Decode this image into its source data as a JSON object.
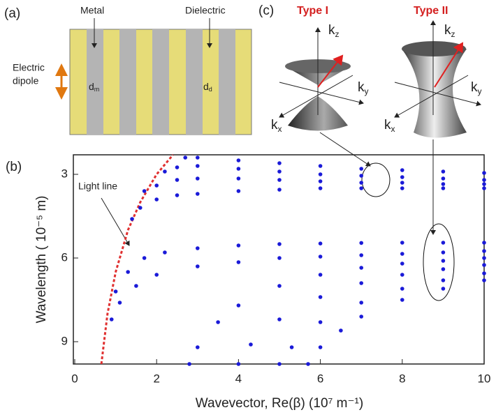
{
  "panel_a": {
    "label": "(a)",
    "metal": "Metal",
    "dielectric": "Dielectric",
    "dipole": [
      "Electric",
      "dipole"
    ],
    "d_m": {
      "symbol": "d",
      "sub": "m"
    },
    "d_d": {
      "symbol": "d",
      "sub": "d"
    }
  },
  "panel_c": {
    "label": "(c)",
    "type_1": "Type I",
    "type_2": "Type II",
    "kz": {
      "symbol": "k",
      "sub": "z"
    },
    "ky": {
      "symbol": "k",
      "sub": "y"
    },
    "kx": {
      "symbol": "k",
      "sub": "x"
    }
  },
  "chart_data": {
    "type": "scatter",
    "label": "(b)",
    "x_label": "Wavevector, Re(β) (10⁷ m⁻¹)",
    "y_label": "Wavelength ( 10⁻⁵ m)",
    "annotation": "Light line",
    "xlim": [
      0,
      10
    ],
    "ylim": [
      9.8,
      2.3
    ],
    "xticks": [
      0,
      2,
      4,
      6,
      8,
      10
    ],
    "yticks": [
      3,
      6,
      9
    ],
    "series": [
      {
        "color": "#e03030",
        "style": "dashed",
        "x": [
          0.65,
          0.8,
          1.0,
          1.3,
          1.6,
          2.0,
          2.4
        ],
        "values": [
          9.8,
          8.0,
          6.5,
          5.0,
          4.0,
          3.0,
          2.3
        ]
      },
      {
        "color": "#1a1ad8",
        "x": [
          2.7,
          3,
          4,
          5,
          6,
          7,
          8,
          9,
          10
        ],
        "values": [
          2.4,
          2.4,
          2.5,
          2.6,
          2.7,
          2.8,
          2.85,
          2.9,
          2.95
        ]
      },
      {
        "color": "#1a1ad8",
        "x": [
          2.2,
          2.5,
          3,
          4,
          5,
          6,
          7,
          8,
          9,
          10
        ],
        "values": [
          2.9,
          2.75,
          2.7,
          2.8,
          2.9,
          3.0,
          3.05,
          3.1,
          3.15,
          3.2
        ]
      },
      {
        "color": "#1a1ad8",
        "x": [
          1.7,
          2,
          2.5,
          3,
          4,
          5,
          6,
          7,
          8,
          9,
          10
        ],
        "values": [
          3.6,
          3.4,
          3.2,
          3.15,
          3.15,
          3.2,
          3.25,
          3.3,
          3.3,
          3.35,
          3.35
        ]
      },
      {
        "color": "#1a1ad8",
        "x": [
          1.4,
          1.6,
          2,
          2.5,
          3,
          4,
          5,
          6,
          7,
          8,
          9,
          10
        ],
        "values": [
          4.6,
          4.2,
          3.9,
          3.75,
          3.7,
          3.6,
          3.55,
          3.5,
          3.5,
          3.5,
          3.5,
          3.5
        ]
      },
      {
        "color": "#1a1ad8",
        "x": [
          1.0,
          1.3,
          1.7,
          2.2,
          3,
          4,
          5,
          6,
          7,
          8,
          9,
          10
        ],
        "values": [
          7.2,
          6.5,
          6.0,
          5.8,
          5.65,
          5.55,
          5.5,
          5.48,
          5.46,
          5.45,
          5.45,
          5.45
        ]
      },
      {
        "color": "#1a1ad8",
        "x": [
          0.9,
          1.1,
          1.5,
          2,
          3,
          4,
          5,
          6,
          7,
          8,
          9,
          10
        ],
        "values": [
          8.2,
          7.6,
          7.0,
          6.6,
          6.3,
          6.15,
          6.0,
          5.95,
          5.9,
          5.85,
          5.8,
          5.75
        ]
      },
      {
        "color": "#1a1ad8",
        "x": [
          2.8,
          3,
          3.5,
          4,
          5,
          6,
          7,
          8,
          9,
          10
        ],
        "values": [
          9.8,
          9.2,
          8.3,
          7.7,
          7.0,
          6.6,
          6.35,
          6.2,
          6.1,
          6.0
        ]
      },
      {
        "color": "#1a1ad8",
        "x": [
          4,
          4.3,
          5,
          6,
          7,
          8,
          9,
          10
        ],
        "values": [
          9.8,
          9.1,
          8.2,
          7.4,
          6.9,
          6.6,
          6.4,
          6.25
        ]
      },
      {
        "color": "#1a1ad8",
        "x": [
          5,
          5.3,
          6,
          7,
          8,
          9,
          10
        ],
        "values": [
          9.8,
          9.2,
          8.3,
          7.6,
          7.1,
          6.8,
          6.55
        ]
      },
      {
        "color": "#1a1ad8",
        "x": [
          5.7,
          6,
          6.5,
          7,
          8,
          9,
          10
        ],
        "values": [
          9.8,
          9.2,
          8.6,
          8.1,
          7.5,
          7.1,
          6.8
        ]
      }
    ]
  }
}
